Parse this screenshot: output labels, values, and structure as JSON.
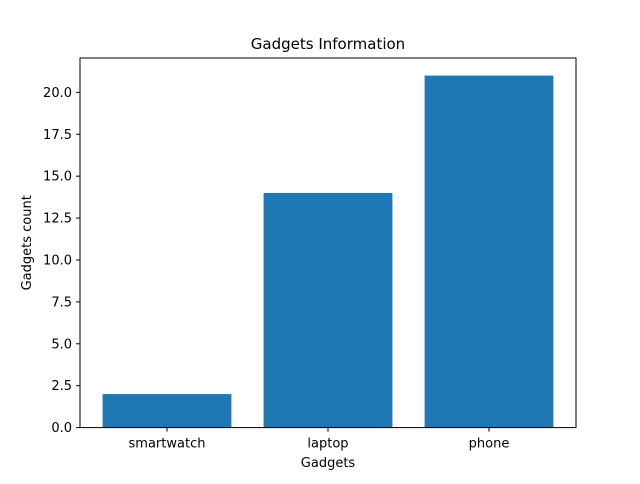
{
  "chart_data": {
    "type": "bar",
    "title": "Gadgets Information",
    "xlabel": "Gadgets",
    "ylabel": "Gadgets count",
    "categories": [
      "smartwatch",
      "laptop",
      "phone"
    ],
    "values": [
      2,
      14,
      21
    ],
    "ylim": [
      0,
      22.05
    ],
    "yticks": [
      0.0,
      2.5,
      5.0,
      7.5,
      10.0,
      12.5,
      15.0,
      17.5,
      20.0
    ],
    "ytick_labels": [
      "0.0",
      "2.5",
      "5.0",
      "7.5",
      "10.0",
      "12.5",
      "15.0",
      "17.5",
      "20.0"
    ],
    "bar_color": "#1f77b4",
    "grid": false,
    "legend": "none"
  }
}
